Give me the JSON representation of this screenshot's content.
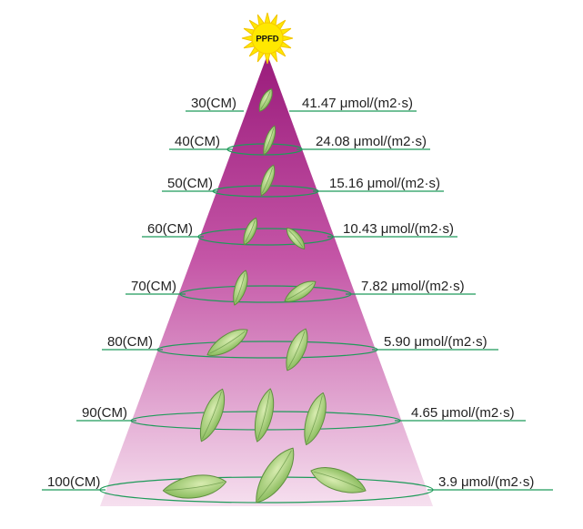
{
  "sun": {
    "label": "PPFD",
    "icon": "sun-icon"
  },
  "levels": [
    {
      "distance": "30(CM)",
      "ppfd": "41.47 μmol/(m2·s)",
      "leaves": 1
    },
    {
      "distance": "40(CM)",
      "ppfd": "24.08 μmol/(m2·s)",
      "leaves": 1
    },
    {
      "distance": "50(CM)",
      "ppfd": "15.16 μmol/(m2·s)",
      "leaves": 1
    },
    {
      "distance": "60(CM)",
      "ppfd": "10.43 μmol/(m2·s)",
      "leaves": 2
    },
    {
      "distance": "70(CM)",
      "ppfd": "7.82 μmol/(m2·s)",
      "leaves": 2
    },
    {
      "distance": "80(CM)",
      "ppfd": "5.90 μmol/(m2·s)",
      "leaves": 2
    },
    {
      "distance": "90(CM)",
      "ppfd": "4.65 μmol/(m2·s)",
      "leaves": 3
    },
    {
      "distance": "100(CM)",
      "ppfd": "3.9 μmol/(m2·s)",
      "leaves": 3
    }
  ],
  "colors": {
    "cone_top": "#9a1b7b",
    "cone_bottom": "#f6e0ef",
    "ring": "#1f9b5a",
    "sun": "#ffe800",
    "leaf": "#8fbf62",
    "leaf_edge": "#5e8f3e"
  }
}
